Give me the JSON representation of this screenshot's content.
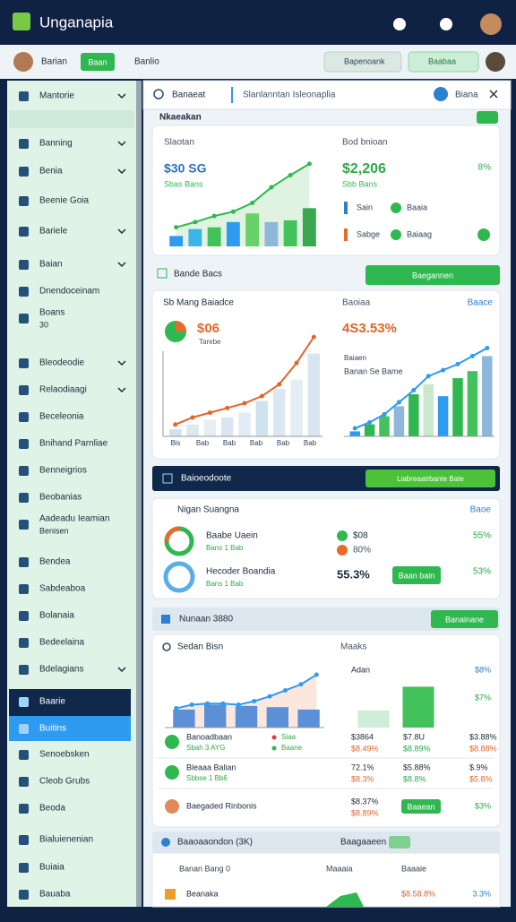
{
  "header": {
    "app_name": "Unganapia"
  },
  "toolbar": {
    "user": "Barian",
    "primary_button": "Baan",
    "menu": "Banlio",
    "search_placeholder": "Bapenoank",
    "action_button": "Baabaa"
  },
  "sidebar": {
    "items": [
      {
        "label": "Mantorie"
      },
      {
        "label": "Banning"
      },
      {
        "label": "Benia"
      },
      {
        "label": "Beenie Goia"
      },
      {
        "label": "Bariele"
      },
      {
        "label": "Baian"
      },
      {
        "label": "Dnendoceinam"
      },
      {
        "label": "Boans",
        "sub": "30"
      },
      {
        "label": "Bleodeodie"
      },
      {
        "label": "Relaodiaagi"
      },
      {
        "label": "Beceleonia"
      },
      {
        "label": "Bnihand Parnliae"
      },
      {
        "label": "Benneigrios"
      },
      {
        "label": "Beobanias"
      },
      {
        "label": "Aadeadu Ieamian",
        "sub": "Benisen"
      },
      {
        "label": "Bendea"
      },
      {
        "label": "Sabdeaboa"
      },
      {
        "label": "Bolanaia"
      },
      {
        "label": "Bedeelaina"
      },
      {
        "label": "Bdelagians"
      },
      {
        "label": "Baarie"
      },
      {
        "label": "Buitins"
      },
      {
        "label": "Senoebsken"
      },
      {
        "label": "Cleob Grubs"
      },
      {
        "label": "Beoda"
      },
      {
        "label": "Bialuienenian"
      },
      {
        "label": "Buiaia"
      },
      {
        "label": "Bauaba"
      }
    ]
  },
  "tabs": {
    "search": "Banaeat",
    "path": "Slanlanntan Isleonaplia",
    "button": "Biana"
  },
  "overview": {
    "title": "Nkaeakan",
    "left_label": "Slaotan",
    "right_label": "Bod bnioan",
    "left_value": "$30 SG",
    "left_sub": "Sbas Bans",
    "right_value": "$2,206",
    "right_sub": "Sbb Bans",
    "right_change": "8%",
    "legend": [
      "Sain",
      "Baaia",
      "Sabge",
      "Baiaag"
    ]
  },
  "section1": {
    "title": "Bande Bacs",
    "button": "Baegannen"
  },
  "performance": {
    "title": "Sb Mang Baiadce",
    "col_label": "Baoiaa",
    "link": "Baace",
    "left_value": "$06",
    "left_sub": "Tarebe",
    "right_value": "4S3.53%",
    "right_label": "Baiaen",
    "right_sub": "Banan Se Bame",
    "x_labels": [
      "Bis",
      "Bab",
      "Bab",
      "Bab",
      "Bab",
      "Bab"
    ]
  },
  "banner": {
    "title": "Baioeodoote",
    "button": "Liabreaatrbante Bate"
  },
  "summary": {
    "title": "Nigan Suangna",
    "link": "Baoe",
    "rows": [
      {
        "name": "Baabe Uaein",
        "sub": "Bans 1 Bab",
        "value": "$08",
        "value2": "80%",
        "change": "55%"
      },
      {
        "name": "Hecoder Boandia",
        "sub": "Bans 1 Bab",
        "value": "55.3%",
        "button": "Baan bain",
        "change": "53%"
      }
    ]
  },
  "section2": {
    "title": "Nunaan 3880",
    "button": "Banainane"
  },
  "details": {
    "title": "Sedan Bisn",
    "col_label": "Maaks",
    "chart_label": "Adan",
    "axis_labels": [
      "$8%",
      "$7%"
    ],
    "rows": [
      {
        "name": "Banoadbaan",
        "sub": "Sbah 3 AYG",
        "tags": [
          "Siaa",
          "Baane"
        ],
        "cells": [
          [
            "$3864",
            "$8.49%"
          ],
          [
            "$7.8U",
            "$8.89%"
          ],
          [
            "$3.88%",
            "$8.88%"
          ]
        ]
      },
      {
        "name": "Bleaaa Balian",
        "sub": "Sbbse 1 Bb6",
        "cells": [
          [
            "72.1%",
            "$8.3%"
          ],
          [
            "$5.88%",
            "$8.8%"
          ],
          [
            "$.9%",
            "$5.8%"
          ]
        ]
      },
      {
        "name": "Baegaded Rinbonis",
        "cells": [
          [
            "$8.37%",
            "$8.89%"
          ]
        ],
        "button": "Baaean",
        "change": "$3%"
      }
    ]
  },
  "footer_card": {
    "title": "Baaoaaondon (3K)",
    "badge_label": "Baagaaeen",
    "columns": [
      "Banan Bang 0",
      "Maaaia",
      "Baaaie"
    ],
    "row": {
      "name": "Beanaka",
      "value": "$8.58.8%",
      "change": "3.3%"
    }
  },
  "charts": {
    "overview": {
      "ylim": [
        0,
        100
      ],
      "bars": [
        12,
        20,
        22,
        28,
        38,
        28,
        30,
        44
      ],
      "line": [
        22,
        28,
        35,
        40,
        50,
        68,
        82,
        95
      ]
    },
    "perf_left": {
      "ylim": [
        0,
        100
      ],
      "bars": [
        6,
        10,
        14,
        16,
        20,
        30,
        40,
        48,
        70
      ],
      "line": [
        10,
        16,
        20,
        24,
        28,
        34,
        44,
        62,
        84
      ]
    },
    "perf_right": {
      "ylim": [
        0,
        100
      ],
      "bars": [
        5,
        12,
        20,
        30,
        42,
        52,
        40,
        58,
        65,
        80
      ],
      "line": [
        8,
        14,
        22,
        34,
        46,
        60,
        66,
        72,
        80,
        88
      ]
    },
    "details_left": {
      "ylim": [
        0,
        100
      ],
      "bars": [
        30,
        38,
        36,
        34,
        30
      ],
      "line": [
        32,
        38,
        40,
        40,
        38,
        44,
        52,
        62,
        72,
        88
      ]
    },
    "details_right": {
      "ylim": [
        0,
        60
      ],
      "bars": [
        20,
        48
      ]
    }
  }
}
